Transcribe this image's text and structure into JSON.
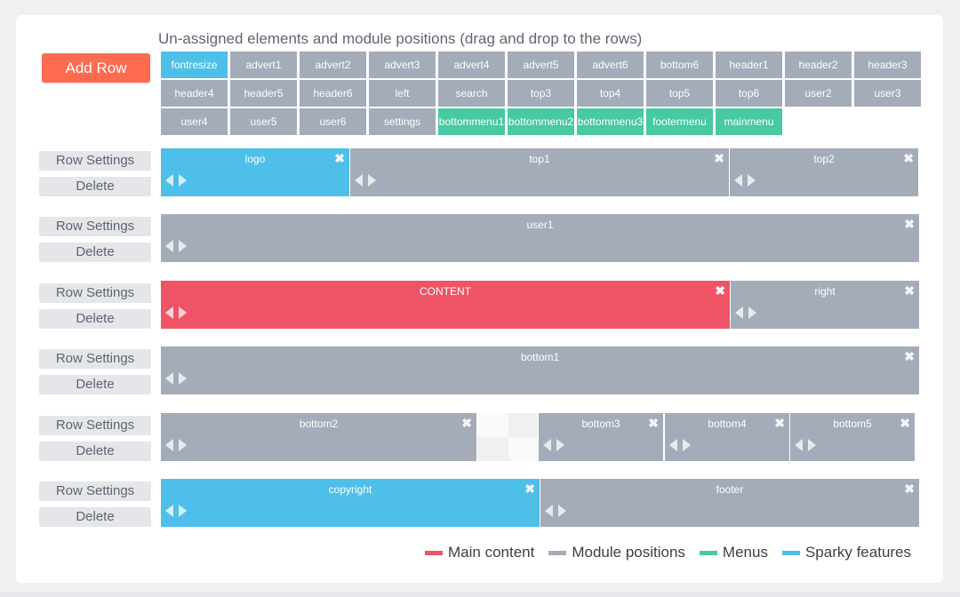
{
  "toolbar": {
    "add_row_label": "Add Row"
  },
  "unassigned": {
    "title": "Un-assigned elements and module positions (drag and drop to the rows)",
    "items": [
      {
        "label": "fontresize",
        "kind": "sparky"
      },
      {
        "label": "advert1",
        "kind": "pos"
      },
      {
        "label": "advert2",
        "kind": "pos"
      },
      {
        "label": "advert3",
        "kind": "pos"
      },
      {
        "label": "advert4",
        "kind": "pos"
      },
      {
        "label": "advert5",
        "kind": "pos"
      },
      {
        "label": "advert6",
        "kind": "pos"
      },
      {
        "label": "bottom6",
        "kind": "pos"
      },
      {
        "label": "header1",
        "kind": "pos"
      },
      {
        "label": "header2",
        "kind": "pos"
      },
      {
        "label": "header3",
        "kind": "pos"
      },
      {
        "label": "header4",
        "kind": "pos"
      },
      {
        "label": "header5",
        "kind": "pos"
      },
      {
        "label": "header6",
        "kind": "pos"
      },
      {
        "label": "left",
        "kind": "pos"
      },
      {
        "label": "search",
        "kind": "pos"
      },
      {
        "label": "top3",
        "kind": "pos"
      },
      {
        "label": "top4",
        "kind": "pos"
      },
      {
        "label": "top5",
        "kind": "pos"
      },
      {
        "label": "top6",
        "kind": "pos"
      },
      {
        "label": "user2",
        "kind": "pos"
      },
      {
        "label": "user3",
        "kind": "pos"
      },
      {
        "label": "user4",
        "kind": "pos"
      },
      {
        "label": "user5",
        "kind": "pos"
      },
      {
        "label": "user6",
        "kind": "pos"
      },
      {
        "label": "settings",
        "kind": "pos"
      },
      {
        "label": "bottommenu1",
        "kind": "menu"
      },
      {
        "label": "bottommenu2",
        "kind": "menu"
      },
      {
        "label": "bottommenu3",
        "kind": "menu"
      },
      {
        "label": "footermenu",
        "kind": "menu"
      },
      {
        "label": "mainmenu",
        "kind": "menu"
      }
    ]
  },
  "row_controls": {
    "settings_label": "Row Settings",
    "delete_label": "Delete"
  },
  "rows": [
    {
      "blocks": [
        {
          "label": "logo",
          "kind": "sparky"
        },
        {
          "label": "top1",
          "kind": "pos"
        },
        {
          "label": "top2",
          "kind": "pos"
        }
      ]
    },
    {
      "blocks": [
        {
          "label": "user1",
          "kind": "pos"
        }
      ]
    },
    {
      "blocks": [
        {
          "label": "CONTENT",
          "kind": "main"
        },
        {
          "label": "right",
          "kind": "pos"
        }
      ]
    },
    {
      "blocks": [
        {
          "label": "bottom1",
          "kind": "pos"
        }
      ]
    },
    {
      "blocks": [
        {
          "label": "bottom2",
          "kind": "pos"
        },
        {
          "label": "bottom3",
          "kind": "pos"
        },
        {
          "label": "bottom4",
          "kind": "pos"
        },
        {
          "label": "bottom5",
          "kind": "pos"
        }
      ]
    },
    {
      "blocks": [
        {
          "label": "copyright",
          "kind": "sparky"
        },
        {
          "label": "footer",
          "kind": "pos"
        }
      ]
    }
  ],
  "legend": [
    {
      "label": "Main content",
      "color": "#ee5366"
    },
    {
      "label": "Module positions",
      "color": "#a3acb8"
    },
    {
      "label": "Menus",
      "color": "#47c9a2"
    },
    {
      "label": "Sparky features",
      "color": "#4dbfe9"
    }
  ]
}
